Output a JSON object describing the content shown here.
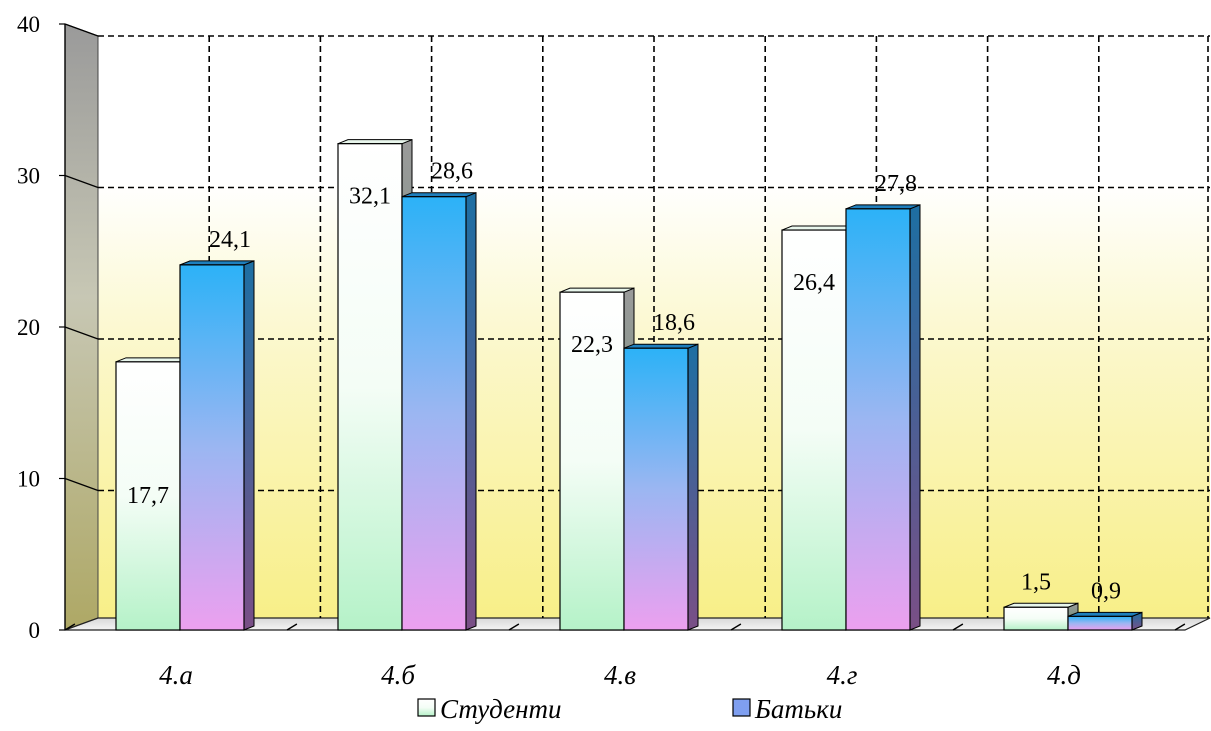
{
  "chart_data": {
    "type": "bar",
    "categories": [
      "4.а",
      "4.б",
      "4.в",
      "4.г",
      "4.д"
    ],
    "series": [
      {
        "name": "Студенти",
        "values": [
          17.7,
          32.1,
          22.3,
          26.4,
          1.5
        ],
        "labels": [
          "17,7",
          "32,1",
          "22,3",
          "26,4",
          "1,5"
        ]
      },
      {
        "name": "Батьки",
        "values": [
          24.1,
          28.6,
          18.6,
          27.8,
          0.9
        ],
        "labels": [
          "24,1",
          "28,6",
          "18,6",
          "27,8",
          "0,9"
        ]
      }
    ],
    "ylim": [
      0,
      40
    ],
    "yticks": [
      0,
      10,
      20,
      30,
      40
    ],
    "ytick_labels": [
      "0",
      "10",
      "20",
      "30",
      "40"
    ],
    "grid": true,
    "legend_position": "bottom",
    "colors": {
      "students_top": "#ffffff",
      "students_bottom": "#b9f5cc",
      "parents_top": "#2fb0f5",
      "parents_bottom": "#e9a2f0",
      "wall_top": "#ffffff",
      "wall_bottom": "#faf08a",
      "side_wall": "#b3ad6e"
    }
  }
}
